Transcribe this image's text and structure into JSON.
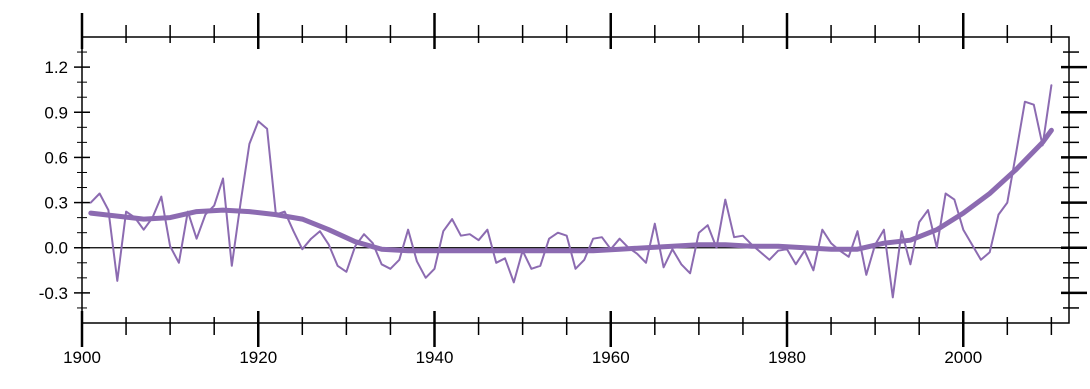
{
  "chart_data": {
    "type": "line",
    "title": "",
    "xlabel": "",
    "ylabel": "",
    "xlim": [
      1900,
      2012
    ],
    "ylim": [
      -0.5,
      1.4
    ],
    "x_ticks": [
      1900,
      1920,
      1940,
      1960,
      1980,
      2000
    ],
    "y_ticks": [
      -0.3,
      0.0,
      0.3,
      0.6,
      0.9,
      1.2
    ],
    "x_tick_labels": [
      "1900",
      "1920",
      "1940",
      "1960",
      "1980",
      "2000"
    ],
    "y_tick_labels": [
      "-0.3",
      "0.0",
      "0.3",
      "0.6",
      "0.9",
      "1.2"
    ],
    "zero_line": 0.0,
    "grid": false,
    "series_color": "#8c6bb1",
    "series": [
      {
        "kind": "annual",
        "x": [
          1901,
          1902,
          1903,
          1904,
          1905,
          1906,
          1907,
          1908,
          1909,
          1910,
          1911,
          1912,
          1913,
          1914,
          1915,
          1916,
          1917,
          1918,
          1919,
          1920,
          1921,
          1922,
          1923,
          1924,
          1925,
          1926,
          1927,
          1928,
          1929,
          1930,
          1931,
          1932,
          1933,
          1934,
          1935,
          1936,
          1937,
          1938,
          1939,
          1940,
          1941,
          1942,
          1943,
          1944,
          1945,
          1946,
          1947,
          1948,
          1949,
          1950,
          1951,
          1952,
          1953,
          1954,
          1955,
          1956,
          1957,
          1958,
          1959,
          1960,
          1961,
          1962,
          1963,
          1964,
          1965,
          1966,
          1967,
          1968,
          1969,
          1970,
          1971,
          1972,
          1973,
          1974,
          1975,
          1976,
          1977,
          1978,
          1979,
          1980,
          1981,
          1982,
          1983,
          1984,
          1985,
          1986,
          1987,
          1988,
          1989,
          1990,
          1991,
          1992,
          1993,
          1994,
          1995,
          1996,
          1997,
          1998,
          1999,
          2000,
          2001,
          2002,
          2003,
          2004,
          2005,
          2006,
          2007,
          2008,
          2009,
          2010
        ],
        "values": [
          0.3,
          0.36,
          0.25,
          -0.22,
          0.24,
          0.2,
          0.12,
          0.2,
          0.34,
          0.01,
          -0.1,
          0.24,
          0.06,
          0.22,
          0.28,
          0.46,
          -0.12,
          0.3,
          0.69,
          0.84,
          0.79,
          0.22,
          0.24,
          0.11,
          -0.01,
          0.06,
          0.11,
          0.02,
          -0.12,
          -0.16,
          0.01,
          0.09,
          0.03,
          -0.11,
          -0.14,
          -0.08,
          0.12,
          -0.09,
          -0.2,
          -0.14,
          0.11,
          0.19,
          0.08,
          0.09,
          0.05,
          0.12,
          -0.1,
          -0.07,
          -0.23,
          -0.02,
          -0.14,
          -0.12,
          0.06,
          0.1,
          0.08,
          -0.14,
          -0.08,
          0.06,
          0.07,
          -0.01,
          0.06,
          0.0,
          -0.04,
          -0.1,
          0.16,
          -0.13,
          -0.01,
          -0.11,
          -0.17,
          0.1,
          0.15,
          0.0,
          0.32,
          0.07,
          0.08,
          0.02,
          -0.03,
          -0.08,
          -0.02,
          -0.01,
          -0.11,
          -0.02,
          -0.15,
          0.12,
          0.03,
          -0.02,
          -0.06,
          0.11,
          -0.18,
          0.02,
          0.12,
          -0.33,
          0.11,
          -0.11,
          0.17,
          0.25,
          0.0,
          0.36,
          0.32,
          0.12,
          0.02,
          -0.08,
          -0.03,
          0.22,
          0.3,
          0.63,
          0.97,
          0.95,
          0.68,
          1.08
        ]
      },
      {
        "kind": "smoothed",
        "x": [
          1901,
          1904,
          1907,
          1910,
          1913,
          1916,
          1919,
          1922,
          1925,
          1928,
          1931,
          1934,
          1937,
          1940,
          1943,
          1946,
          1949,
          1952,
          1955,
          1958,
          1961,
          1964,
          1967,
          1970,
          1973,
          1976,
          1979,
          1982,
          1985,
          1988,
          1991,
          1994,
          1997,
          2000,
          2003,
          2006,
          2009,
          2010
        ],
        "values": [
          0.23,
          0.21,
          0.19,
          0.2,
          0.24,
          0.25,
          0.24,
          0.22,
          0.19,
          0.12,
          0.04,
          -0.01,
          -0.02,
          -0.02,
          -0.02,
          -0.02,
          -0.02,
          -0.02,
          -0.02,
          -0.02,
          -0.01,
          0.0,
          0.01,
          0.02,
          0.02,
          0.01,
          0.01,
          0.0,
          -0.01,
          -0.01,
          0.03,
          0.05,
          0.12,
          0.23,
          0.36,
          0.52,
          0.7,
          0.78
        ]
      }
    ]
  }
}
